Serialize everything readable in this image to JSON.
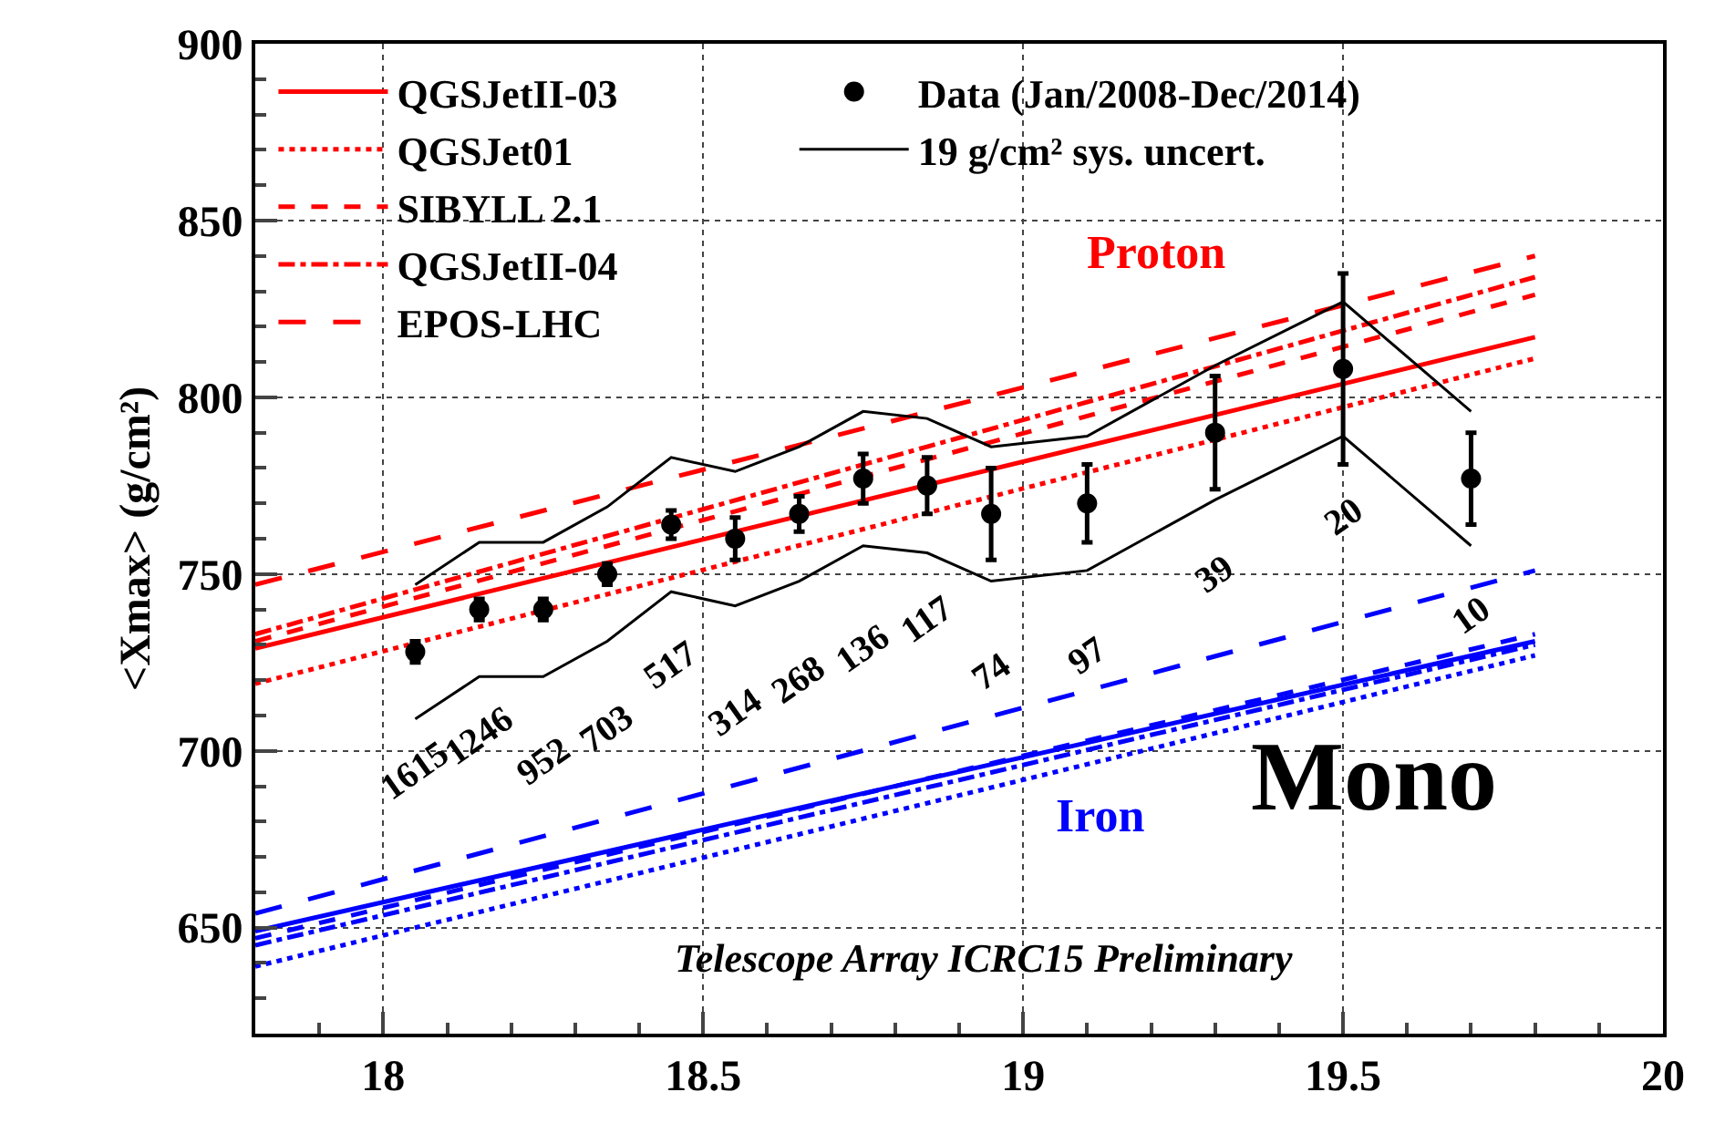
{
  "chart_data": {
    "type": "line",
    "ylabel": "<Xmax> (g/cm²)",
    "xlim": [
      17.8,
      20
    ],
    "xticks": [
      18,
      18.5,
      19,
      19.5,
      20
    ],
    "ylim": [
      620,
      900
    ],
    "yticks": [
      650,
      700,
      750,
      800,
      850,
      900
    ],
    "grid": true,
    "legend": "top left",
    "series": [
      {
        "name": "QGSJetII-03",
        "line_style": "solid",
        "marker": "none",
        "color": "#ff0000",
        "x": [
          17.8,
          19.8
        ],
        "values": [
          729,
          817
        ]
      },
      {
        "name": "QGSJet01",
        "line_style": "dotted",
        "marker": "none",
        "color": "#ff0000",
        "x": [
          17.8,
          19.8
        ],
        "values": [
          719,
          811
        ]
      },
      {
        "name": "SIBYLL 2.1",
        "line_style": "dashed",
        "marker": "none",
        "color": "#ff0000",
        "x": [
          17.8,
          19.8
        ],
        "values": [
          731,
          829
        ]
      },
      {
        "name": "QGSJetII-04",
        "line_style": "dashdot",
        "marker": "none",
        "color": "#ff0000",
        "x": [
          17.8,
          19.8
        ],
        "values": [
          733,
          834
        ]
      },
      {
        "name": "EPOS-LHC",
        "line_style": "longdash",
        "marker": "none",
        "color": "#ff0000",
        "x": [
          17.8,
          19.8
        ],
        "values": [
          747,
          840
        ]
      },
      {
        "line_style": "solid",
        "marker": "none",
        "color": "#0000ff",
        "x": [
          17.8,
          19.8
        ],
        "values": [
          649,
          731
        ]
      },
      {
        "line_style": "dotted",
        "marker": "none",
        "color": "#0000ff",
        "x": [
          17.8,
          19.8
        ],
        "values": [
          639,
          727
        ]
      },
      {
        "line_style": "dashed",
        "marker": "none",
        "color": "#0000ff",
        "x": [
          17.8,
          19.8
        ],
        "values": [
          647,
          733
        ]
      },
      {
        "line_style": "dashdot",
        "marker": "none",
        "color": "#0000ff",
        "x": [
          17.8,
          19.8
        ],
        "values": [
          645,
          730
        ]
      },
      {
        "line_style": "longdash",
        "marker": "none",
        "color": "#0000ff",
        "x": [
          17.8,
          19.8
        ],
        "values": [
          654,
          751
        ]
      },
      {
        "name": "Data (Jan/2008-Dec/2014)",
        "type": "scatter",
        "marker": "circle",
        "color": "#000000",
        "x": [
          18.05,
          18.15,
          18.25,
          18.35,
          18.45,
          18.55,
          18.65,
          18.75,
          18.85,
          18.95,
          19.1,
          19.3,
          19.5,
          19.7
        ],
        "values": [
          728,
          740,
          740,
          750,
          764,
          760,
          767,
          777,
          775,
          767,
          770,
          790,
          808,
          777
        ],
        "errors": [
          3,
          3,
          3,
          3,
          4,
          6,
          5,
          7,
          8,
          13,
          11,
          16,
          27,
          13
        ]
      },
      {
        "name": "19 g/cm² sys. uncert.",
        "line_style": "solid",
        "marker": "none",
        "color": "#000000",
        "x": [
          18.05,
          18.15,
          18.25,
          18.35,
          18.45,
          18.55,
          18.65,
          18.75,
          18.85,
          18.95,
          19.1,
          19.3,
          19.5,
          19.7
        ],
        "values": [
          747,
          759,
          759,
          769,
          783,
          779,
          786,
          796,
          794,
          786,
          789,
          809,
          827,
          796
        ]
      },
      {
        "line_style": "solid",
        "marker": "none",
        "color": "#000000",
        "x": [
          18.05,
          18.15,
          18.25,
          18.35,
          18.45,
          18.55,
          18.65,
          18.75,
          18.85,
          18.95,
          19.1,
          19.3,
          19.5,
          19.7
        ],
        "values": [
          709,
          721,
          721,
          731,
          745,
          741,
          748,
          758,
          756,
          748,
          751,
          771,
          789,
          758
        ]
      }
    ],
    "annotations": [
      "1615",
      "1246",
      "952",
      "703",
      "517",
      "314",
      "268",
      "136",
      "117",
      "74",
      "97",
      "39",
      "20",
      "10",
      "Proton",
      "Iron",
      "Mono",
      "Telescope Array ICRC15 Preliminary"
    ]
  }
}
